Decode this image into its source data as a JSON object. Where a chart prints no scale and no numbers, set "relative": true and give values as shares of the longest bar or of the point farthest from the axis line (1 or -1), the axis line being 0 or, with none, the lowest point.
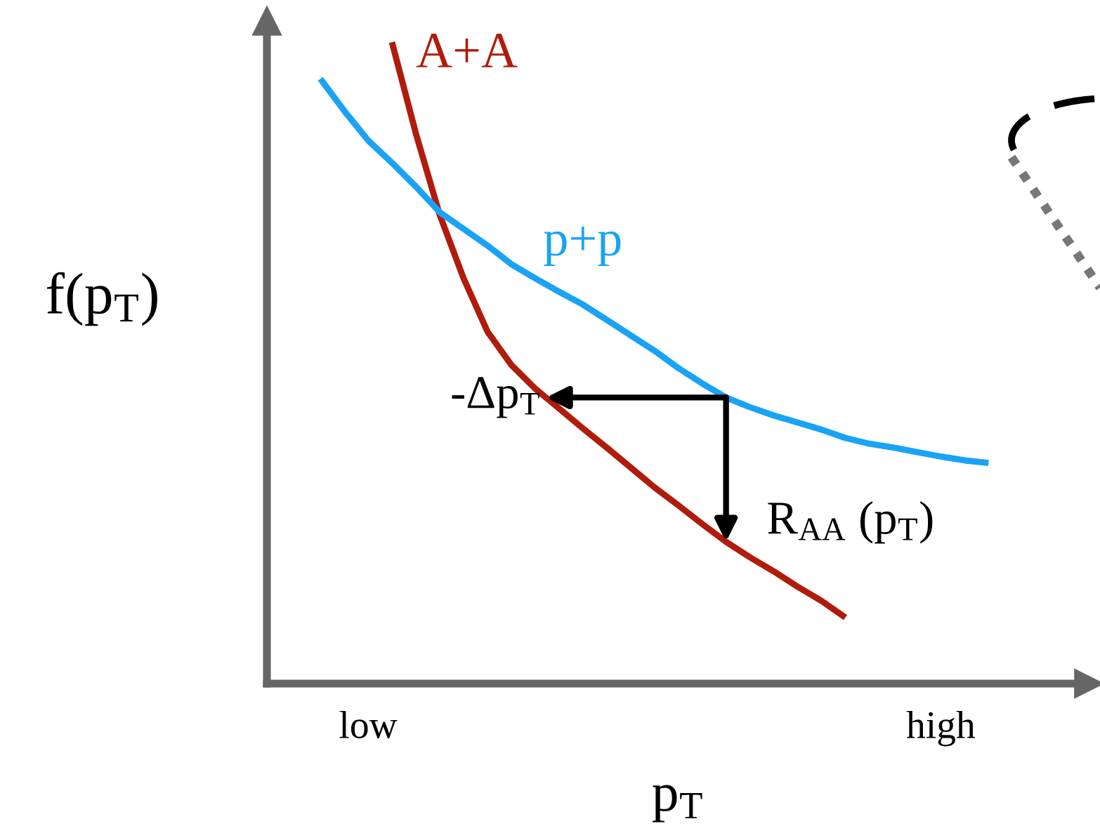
{
  "chart_data": {
    "type": "line",
    "relative": true,
    "ylabel": "f(p$_{T}$)",
    "xlabel": "p$_{T}$",
    "categories": [
      null,
      null,
      null,
      null,
      "low",
      null,
      null,
      null,
      null,
      null,
      null,
      null,
      null,
      null,
      null,
      null,
      null,
      null,
      null,
      null,
      null,
      null,
      null,
      null,
      null,
      null,
      null,
      null,
      "high",
      null,
      null
    ],
    "tick_labels": "x",
    "marker": "none",
    "line_style": "solid",
    "series": [
      {
        "name": "A+A",
        "color": "#b01c0c",
        "values": [
          null,
          null,
          null,
          null,
          null,
          1,
          0.858,
          0.731,
          0.632,
          0.549,
          0.497,
          0.46,
          0.429,
          0.398,
          0.368,
          0.337,
          0.306,
          0.278,
          0.249,
          0.221,
          0.197,
          0.175,
          0.151,
          0.129,
          0.103,
          null,
          null,
          null,
          null,
          null,
          null
        ]
      },
      {
        "name": "p+p",
        "color": "#1aa3f5",
        "values": [
          null,
          null,
          0.943,
          0.893,
          0.847,
          0.812,
          0.775,
          0.735,
          0.709,
          0.683,
          0.654,
          0.632,
          0.611,
          0.591,
          0.567,
          0.543,
          0.519,
          0.492,
          0.468,
          0.446,
          0.431,
          0.418,
          0.407,
          0.396,
          0.383,
          0.374,
          0.368,
          0.361,
          0.354,
          0.348,
          0.344
        ]
      }
    ],
    "annotations": [
      "-Δp$_{T}$",
      "R$_{AA}$ (p$_{T}$)"
    ]
  }
}
